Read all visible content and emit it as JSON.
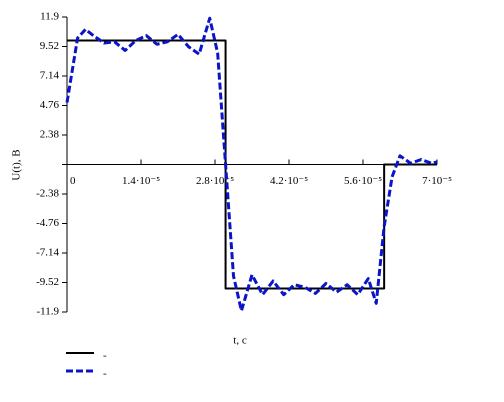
{
  "chart_data": {
    "type": "line",
    "xlabel": "t, c",
    "ylabel": "U(t), B",
    "xlim": [
      0,
      7e-05
    ],
    "ylim": [
      -11.9,
      11.9
    ],
    "xticks": [
      0,
      {
        "value": 1.4e-05,
        "label": "1.4·10⁻⁵"
      },
      {
        "value": 2.8e-05,
        "label": "2.8·10⁻⁵"
      },
      {
        "value": 4.2e-05,
        "label": "4.2·10⁻⁵"
      },
      {
        "value": 5.6e-05,
        "label": "5.6·10⁻⁵"
      },
      {
        "value": 7e-05,
        "label": "7·10⁻⁵"
      }
    ],
    "yticks": [
      11.9,
      9.52,
      7.14,
      4.76,
      2.38,
      -2.38,
      -4.76,
      -7.14,
      -9.52,
      -11.9
    ],
    "series": [
      {
        "name": "-",
        "color": "#000000",
        "dash": false,
        "x": [
          0,
          3e-05,
          3e-05,
          6e-05,
          6e-05,
          7e-05
        ],
        "values": [
          10,
          10,
          -10,
          -10,
          0,
          0
        ]
      },
      {
        "name": "-",
        "color": "#0a14c8",
        "dash": true,
        "x": [
          0,
          2e-06,
          3.5e-06,
          5e-06,
          7e-06,
          9e-06,
          1.1e-05,
          1.3e-05,
          1.5e-05,
          1.7e-05,
          1.9e-05,
          2.1e-05,
          2.3e-05,
          2.5e-05,
          2.7e-05,
          2.85e-05,
          3e-05,
          3.15e-05,
          3.3e-05,
          3.5e-05,
          3.7e-05,
          3.9e-05,
          4.1e-05,
          4.3e-05,
          4.5e-05,
          4.7e-05,
          4.9e-05,
          5.1e-05,
          5.3e-05,
          5.5e-05,
          5.7e-05,
          5.85e-05,
          6e-05,
          6.15e-05,
          6.3e-05,
          6.5e-05,
          6.7e-05,
          6.9e-05,
          7e-05
        ],
        "values": [
          5.0,
          10.2,
          10.9,
          10.4,
          9.8,
          9.9,
          9.2,
          10.0,
          10.4,
          9.7,
          9.9,
          10.5,
          9.5,
          8.9,
          11.8,
          9.0,
          0,
          -9.0,
          -11.8,
          -8.9,
          -10.5,
          -9.4,
          -10.5,
          -9.7,
          -9.9,
          -10.4,
          -9.6,
          -10.3,
          -9.7,
          -10.5,
          -9.2,
          -11.2,
          -5.0,
          -1.0,
          0.7,
          0.1,
          0.4,
          0.1,
          0.2
        ]
      }
    ]
  }
}
